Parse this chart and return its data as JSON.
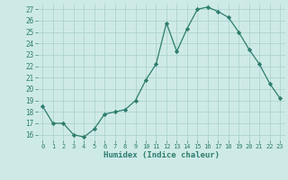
{
  "x": [
    0,
    1,
    2,
    3,
    4,
    5,
    6,
    7,
    8,
    9,
    10,
    11,
    12,
    13,
    14,
    15,
    16,
    17,
    18,
    19,
    20,
    21,
    22,
    23
  ],
  "y": [
    18.5,
    17.0,
    17.0,
    16.0,
    15.8,
    16.5,
    17.8,
    18.0,
    18.2,
    19.0,
    20.8,
    22.2,
    25.8,
    23.3,
    25.3,
    27.0,
    27.2,
    26.8,
    26.3,
    25.0,
    23.5,
    22.2,
    20.5,
    19.2
  ],
  "line_color": "#2e7d6e",
  "marker": "D",
  "marker_size": 2.2,
  "bg_color": "#ceeae7",
  "grid_color": "#add4d0",
  "xlabel": "Humidex (Indice chaleur)",
  "ylabel_ticks": [
    16,
    17,
    18,
    19,
    20,
    21,
    22,
    23,
    24,
    25,
    26,
    27
  ],
  "xlim": [
    -0.5,
    23.5
  ],
  "ylim": [
    15.5,
    27.5
  ]
}
